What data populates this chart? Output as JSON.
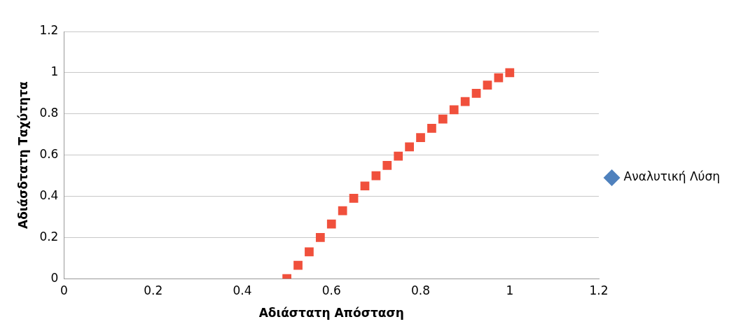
{
  "chart_data": {
    "type": "scatter",
    "xlabel": "Αδιάστατη Απόσταση",
    "ylabel": "Αδιάσδτατη Ταχύτητα",
    "x": [
      0.5,
      0.525,
      0.55,
      0.575,
      0.6,
      0.625,
      0.65,
      0.675,
      0.7,
      0.725,
      0.75,
      0.775,
      0.8,
      0.825,
      0.85,
      0.875,
      0.9,
      0.925,
      0.95,
      0.975,
      1
    ],
    "series": [
      {
        "name": "Αναλυτική Λύση",
        "color": "#4f81bd",
        "marker": "diamond",
        "values": [
          null,
          null,
          null,
          null,
          null,
          null,
          null,
          null,
          null,
          null,
          null,
          null,
          null,
          null,
          null,
          null,
          null,
          null,
          null,
          null,
          null
        ]
      },
      {
        "color": "#f0503c",
        "marker": "square",
        "values": [
          0,
          0.065,
          0.13,
          0.2,
          0.265,
          0.33,
          0.39,
          0.45,
          0.5,
          0.55,
          0.595,
          0.64,
          0.685,
          0.73,
          0.775,
          0.82,
          0.86,
          0.9,
          0.94,
          0.975,
          1
        ]
      }
    ],
    "xlim": [
      0,
      1.2
    ],
    "xticks": [
      0,
      0.2,
      0.4,
      0.6,
      0.8,
      1,
      1.2
    ],
    "ylim": [
      0,
      1.2
    ],
    "yticks": [
      0,
      0.2,
      0.4,
      0.6,
      0.8,
      1,
      1.2
    ],
    "grid": "y",
    "legend": "right"
  }
}
